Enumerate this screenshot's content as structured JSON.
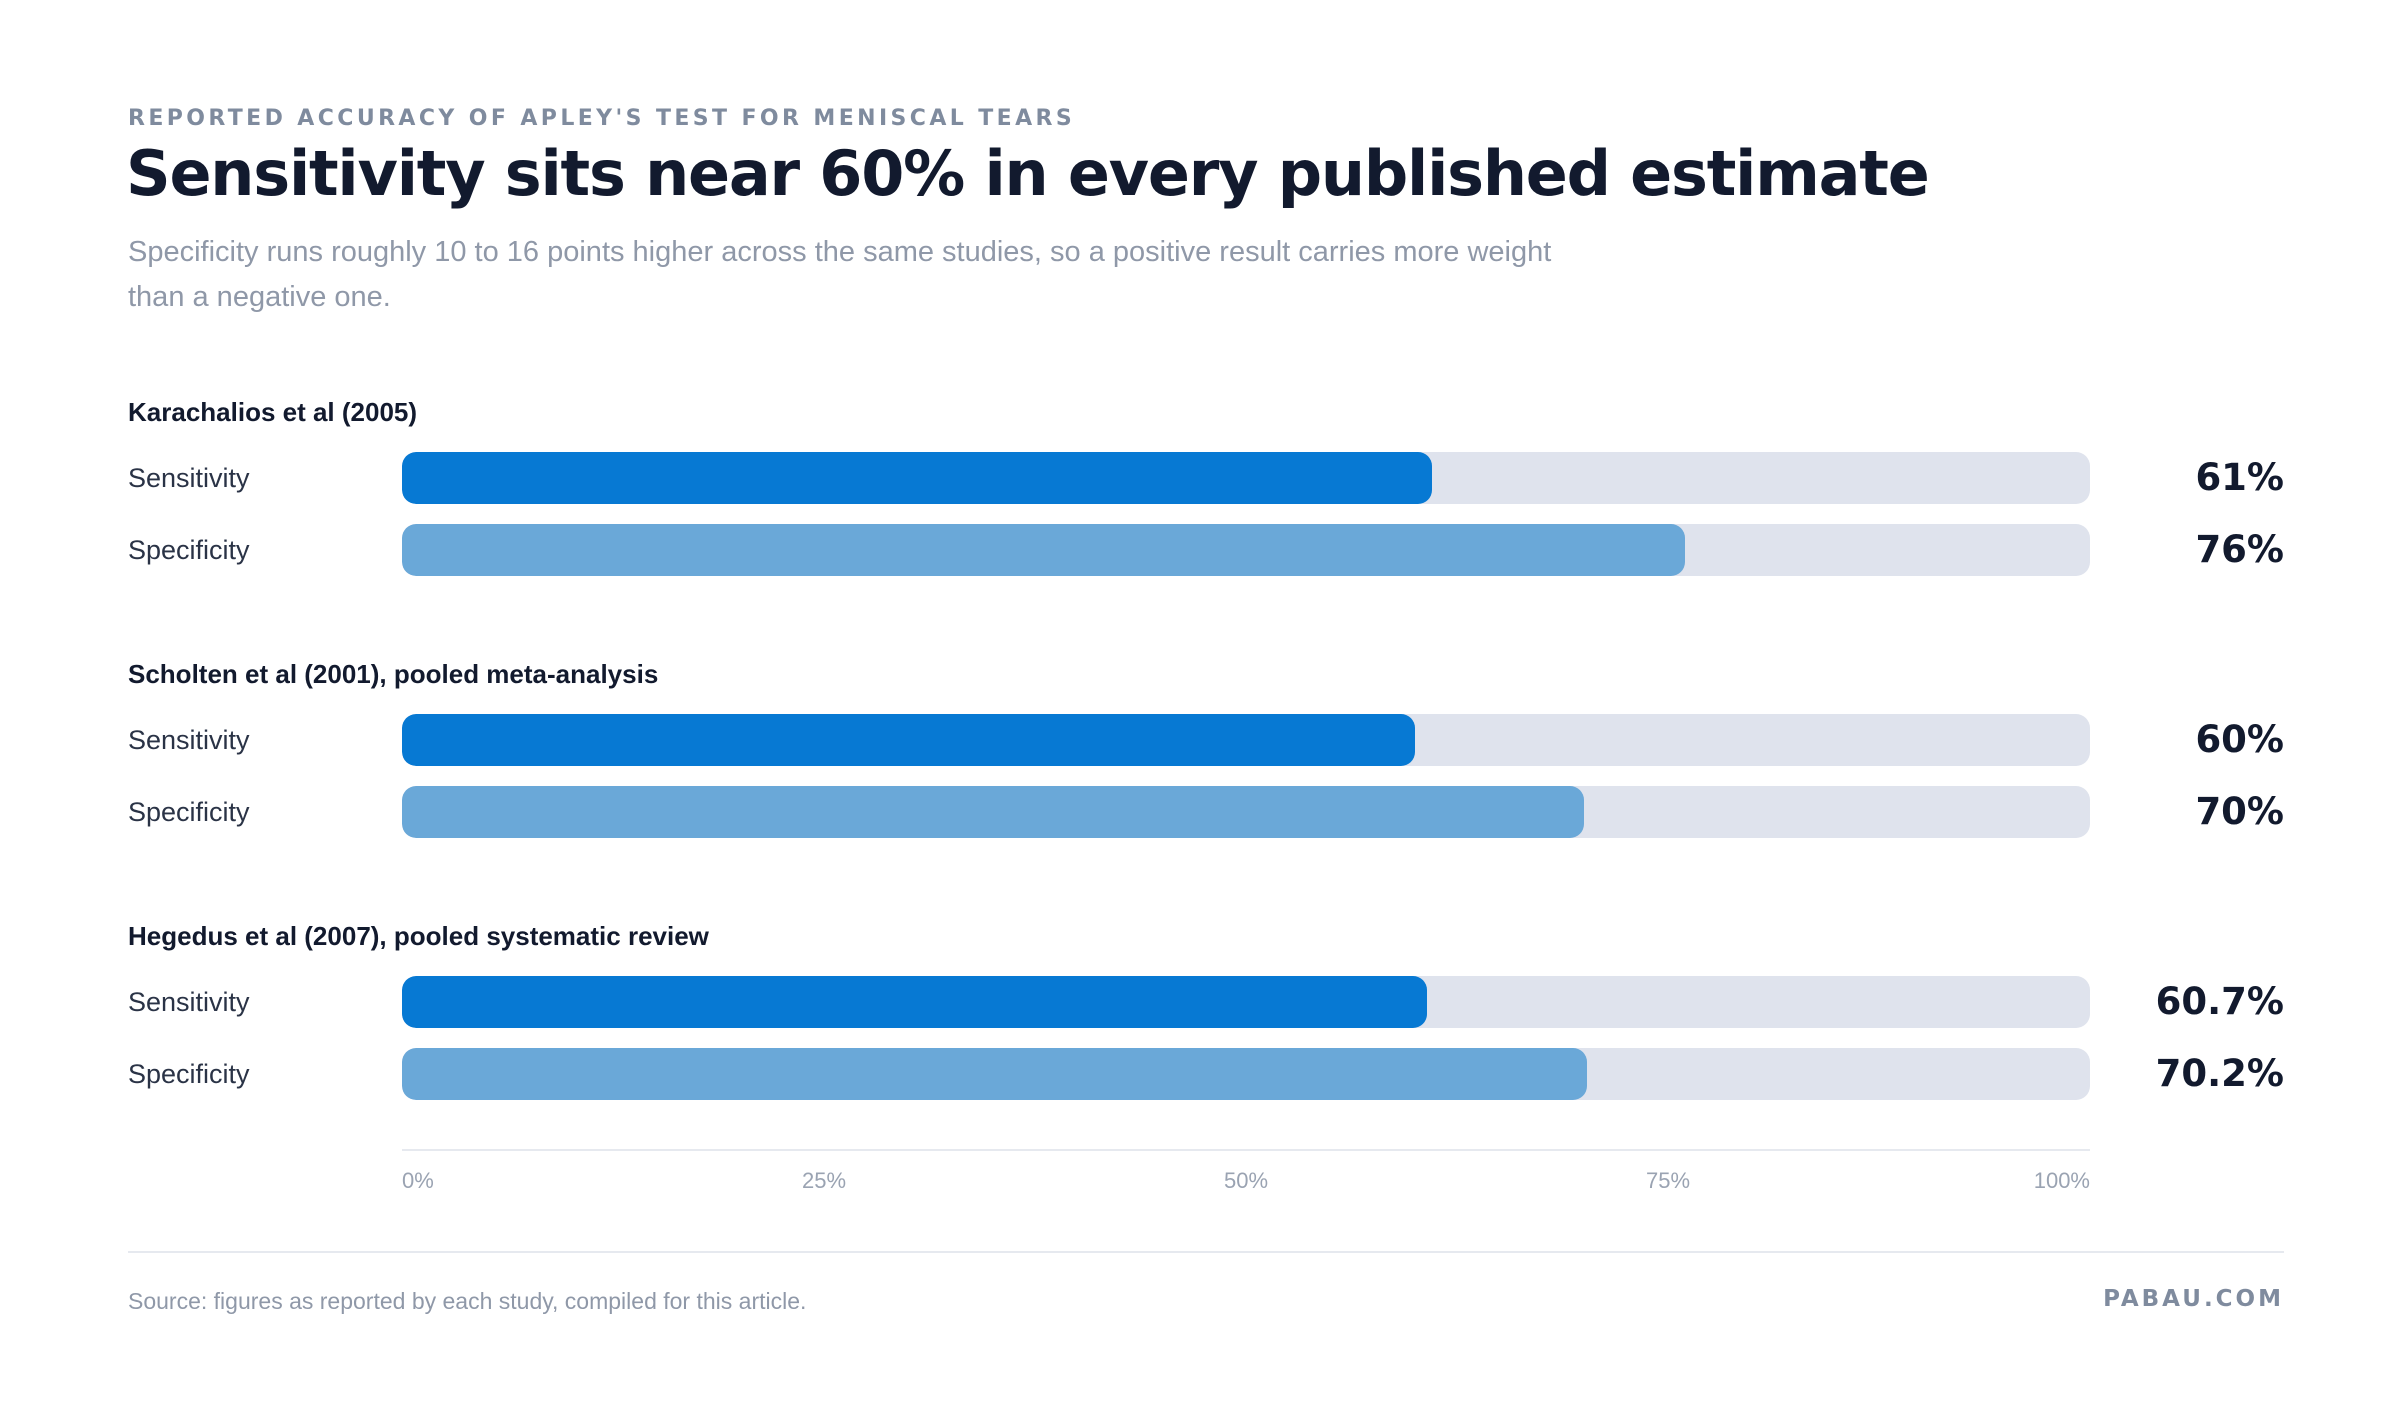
{
  "header": {
    "eyebrow": "REPORTED ACCURACY OF APLEY'S TEST FOR MENISCAL TEARS",
    "title": "Sensitivity sits near 60% in every published estimate",
    "subtitle": "Specificity runs roughly 10 to 16 points higher across the same studies, so a positive result carries more weight than a negative one."
  },
  "colors": {
    "sensitivity": "#0779d3",
    "specificity": "#6aa8d8",
    "track": "#dfe3ed"
  },
  "chart_data": {
    "type": "bar",
    "orientation": "horizontal",
    "xlim": [
      0,
      100
    ],
    "unit": "%",
    "ticks": [
      "0%",
      "25%",
      "50%",
      "75%",
      "100%"
    ],
    "groups": [
      {
        "name": "Karachalios et al (2005)",
        "rows": [
          {
            "label": "Sensitivity",
            "value": 61,
            "display": "61%"
          },
          {
            "label": "Specificity",
            "value": 76,
            "display": "76%"
          }
        ]
      },
      {
        "name": "Scholten et al (2001), pooled meta-analysis",
        "rows": [
          {
            "label": "Sensitivity",
            "value": 60,
            "display": "60%"
          },
          {
            "label": "Specificity",
            "value": 70,
            "display": "70%"
          }
        ]
      },
      {
        "name": "Hegedus et al (2007), pooled systematic review",
        "rows": [
          {
            "label": "Sensitivity",
            "value": 60.7,
            "display": "60.7%"
          },
          {
            "label": "Specificity",
            "value": 70.2,
            "display": "70.2%"
          }
        ]
      }
    ]
  },
  "footer": {
    "source": "Source: figures as reported by each study, compiled for this article.",
    "brand": "PABAU.COM"
  }
}
